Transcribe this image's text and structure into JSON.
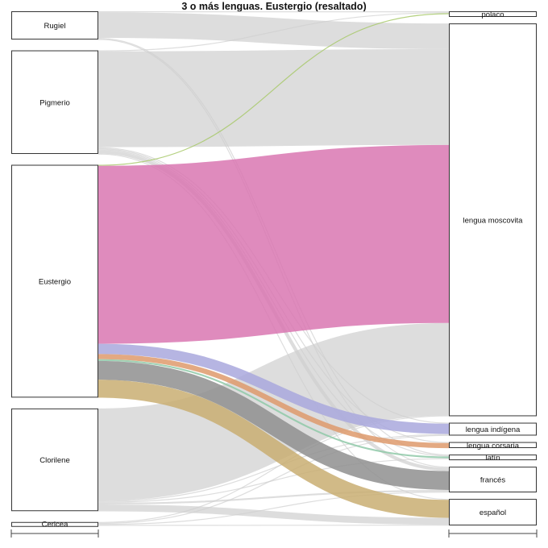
{
  "title": "3 o más lenguas. Eustergio (resaltado)",
  "highlight": "Eustergio",
  "colors": {
    "base": "#cfcfcf",
    "lengua moscovita": "#d977b2",
    "polaco": "#a8c96b",
    "lengua indígena": "#a9a8dd",
    "lengua corsaria": "#de9a6c",
    "latín": "#8fc9a8",
    "francés": "#8f8f8f",
    "español": "#c9ae72"
  },
  "chart_data": {
    "type": "sankey",
    "sources": [
      "Rugiel",
      "Pigmerio",
      "Eustergio",
      "Clorilene",
      "Cericea"
    ],
    "targets": [
      "polaco",
      "lengua moscovita",
      "lengua indígena",
      "lengua corsaria",
      "latín",
      "francés",
      "español"
    ],
    "links": [
      {
        "source": "Rugiel",
        "target": "polaco",
        "value": 1
      },
      {
        "source": "Rugiel",
        "target": "lengua moscovita",
        "value": 30
      },
      {
        "source": "Rugiel",
        "target": "latín",
        "value": 1
      },
      {
        "source": "Rugiel",
        "target": "francés",
        "value": 1
      },
      {
        "source": "Pigmerio",
        "target": "polaco",
        "value": 1
      },
      {
        "source": "Pigmerio",
        "target": "lengua moscovita",
        "value": 112
      },
      {
        "source": "Pigmerio",
        "target": "lengua indígena",
        "value": 1
      },
      {
        "source": "Pigmerio",
        "target": "lengua corsaria",
        "value": 1
      },
      {
        "source": "Pigmerio",
        "target": "latín",
        "value": 1
      },
      {
        "source": "Pigmerio",
        "target": "francés",
        "value": 4
      },
      {
        "source": "Pigmerio",
        "target": "español",
        "value": 1
      },
      {
        "source": "Eustergio",
        "target": "polaco",
        "value": 1
      },
      {
        "source": "Eustergio",
        "target": "lengua moscovita",
        "value": 208
      },
      {
        "source": "Eustergio",
        "target": "lengua indígena",
        "value": 12
      },
      {
        "source": "Eustergio",
        "target": "lengua corsaria",
        "value": 6
      },
      {
        "source": "Eustergio",
        "target": "latín",
        "value": 2
      },
      {
        "source": "Eustergio",
        "target": "francés",
        "value": 22
      },
      {
        "source": "Eustergio",
        "target": "español",
        "value": 21
      },
      {
        "source": "Clorilene",
        "target": "lengua moscovita",
        "value": 108
      },
      {
        "source": "Clorilene",
        "target": "lengua indígena",
        "value": 1
      },
      {
        "source": "Clorilene",
        "target": "latín",
        "value": 1
      },
      {
        "source": "Clorilene",
        "target": "francés",
        "value": 2
      },
      {
        "source": "Clorilene",
        "target": "español",
        "value": 8
      },
      {
        "source": "Cericea",
        "target": "lengua moscovita",
        "value": 1
      },
      {
        "source": "Cericea",
        "target": "lengua indígena",
        "value": 1
      },
      {
        "source": "Cericea",
        "target": "francés",
        "value": 1
      },
      {
        "source": "Cericea",
        "target": "español",
        "value": 1
      }
    ]
  }
}
